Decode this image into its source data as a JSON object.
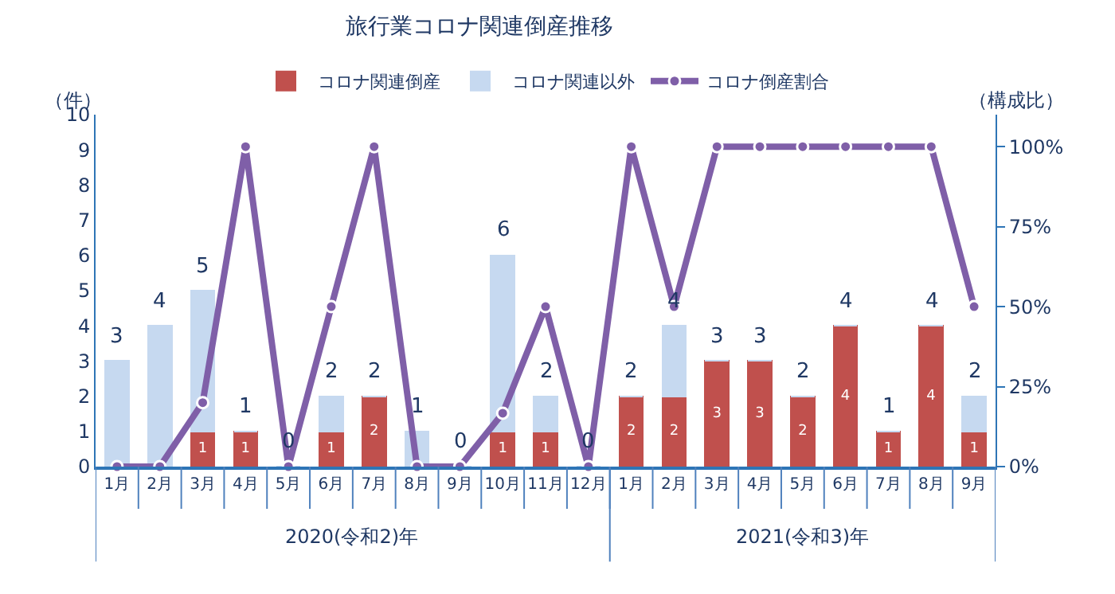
{
  "chart_data": {
    "type": "bar",
    "title": "旅行業コロナ関連倒産推移",
    "ylabel": "（件）",
    "y2label": "（構成比）",
    "categories": [
      "1月",
      "2月",
      "3月",
      "4月",
      "5月",
      "6月",
      "7月",
      "8月",
      "9月",
      "10月",
      "11月",
      "12月",
      "1月",
      "2月",
      "3月",
      "4月",
      "5月",
      "6月",
      "7月",
      "8月",
      "9月"
    ],
    "stacked": true,
    "series": [
      {
        "name": "コロナ関連倒産",
        "color": "#c0504d",
        "values": [
          0,
          0,
          1,
          1,
          0,
          1,
          2,
          0,
          0,
          1,
          1,
          0,
          2,
          2,
          3,
          3,
          2,
          4,
          1,
          4,
          1
        ],
        "value_labels": [
          null,
          null,
          "1",
          "1",
          null,
          "1",
          "2",
          null,
          null,
          "1",
          "1",
          null,
          "2",
          "2",
          "3",
          "3",
          "2",
          "4",
          "1",
          "4",
          "1"
        ]
      },
      {
        "name": "コロナ関連以外",
        "color": "#c6d9f0",
        "values": [
          3,
          4,
          4,
          0,
          0,
          1,
          0,
          1,
          0,
          5,
          1,
          0,
          0,
          2,
          0,
          0,
          0,
          0,
          0,
          0,
          1
        ]
      },
      {
        "name": "コロナ倒産割合",
        "type": "line",
        "axis": "y2",
        "color": "#7f5fa8",
        "marker": "circle",
        "values": [
          0,
          0,
          20,
          100,
          0,
          50,
          100,
          0,
          0,
          16.7,
          50,
          0,
          100,
          50,
          100,
          100,
          100,
          100,
          100,
          100,
          50
        ]
      }
    ],
    "totals": [
      "3",
      "4",
      "5",
      "1",
      "0",
      "2",
      "2",
      "1",
      "0",
      "6",
      "2",
      "0",
      "2",
      "4",
      "3",
      "3",
      "2",
      "4",
      "1",
      "4",
      "2"
    ],
    "ylim": [
      0,
      10
    ],
    "yticks": [
      0,
      1,
      2,
      3,
      4,
      5,
      6,
      7,
      8,
      9,
      10
    ],
    "y2lim": [
      0,
      110
    ],
    "y2ticks": [
      {
        "value": 0,
        "label": "0%"
      },
      {
        "value": 25,
        "label": "25%"
      },
      {
        "value": 50,
        "label": "50%"
      },
      {
        "value": 75,
        "label": "75%"
      },
      {
        "value": 100,
        "label": "100%"
      }
    ],
    "annotations": [
      "2020(令和2)年",
      "2021(令和3)年"
    ],
    "grid": false,
    "legend": "top"
  }
}
